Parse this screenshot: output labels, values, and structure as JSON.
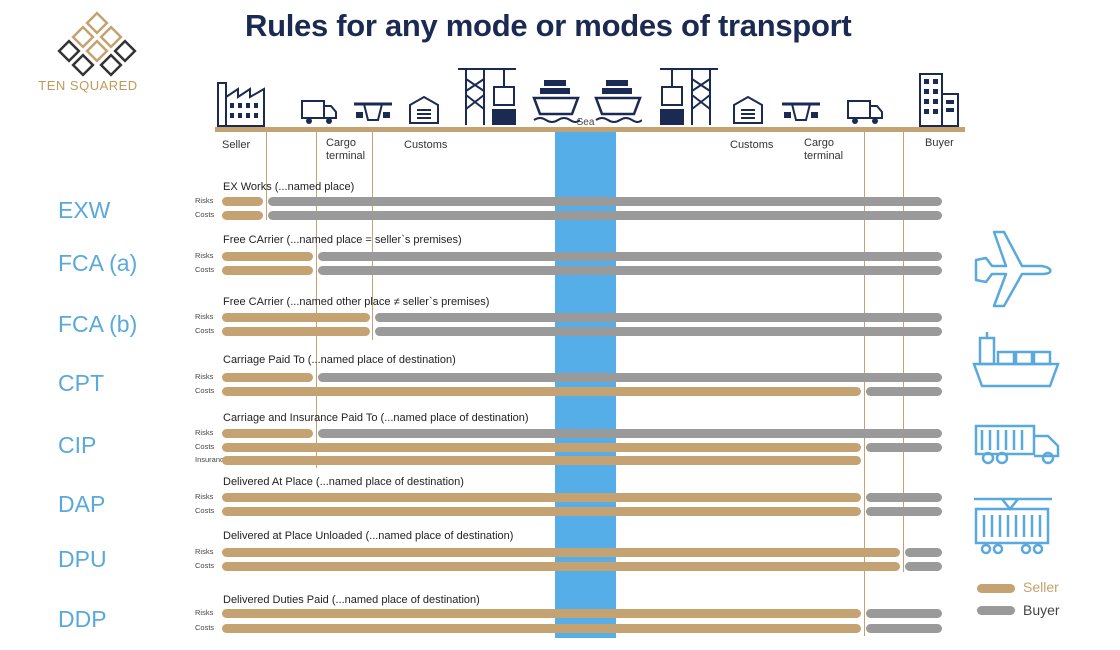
{
  "title": "Rules for any mode or modes of transport",
  "brand": "TEN SQUARED",
  "sea_label": "Sea",
  "locations": {
    "seller": "Seller",
    "cargo_terminal_1": "Cargo terminal",
    "customs_1": "Customs",
    "customs_2": "Customs",
    "cargo_terminal_2": "Cargo terminal",
    "buyer": "Buyer"
  },
  "terms": [
    {
      "code": "EXW",
      "title": "EX Works (...named place)",
      "rows": [
        {
          "label": "Risks",
          "seller_end": 0.4,
          "buyer": true
        },
        {
          "label": "Costs",
          "seller_end": 0.4,
          "buyer": true
        }
      ]
    },
    {
      "code": "FCA (a)",
      "title": "Free CArrier (...named place = seller`s premises)",
      "rows": [
        {
          "label": "Risks",
          "seller_end": 1,
          "buyer": true
        },
        {
          "label": "Costs",
          "seller_end": 1,
          "buyer": true
        }
      ]
    },
    {
      "code": "FCA (b)",
      "title": "Free CArrier (...named other place ≠ seller`s premises)",
      "rows": [
        {
          "label": "Risks",
          "seller_end": 2,
          "buyer": true
        },
        {
          "label": "Costs",
          "seller_end": 2,
          "buyer": true
        }
      ]
    },
    {
      "code": "CPT",
      "title": "Carriage Paid To (...named place of destination)",
      "rows": [
        {
          "label": "Risks",
          "seller_end": 1,
          "buyer": true
        },
        {
          "label": "Costs",
          "seller_end": 9,
          "buyer": true
        }
      ]
    },
    {
      "code": "CIP",
      "title": "Carriage and Insurance Paid To (...named place of destination)",
      "rows": [
        {
          "label": "Risks",
          "seller_end": 1,
          "buyer": true
        },
        {
          "label": "Costs",
          "seller_end": 9,
          "buyer": true
        },
        {
          "label": "Insurance",
          "seller_end": 9,
          "buyer": false
        }
      ]
    },
    {
      "code": "DAP",
      "title": "Delivered At Place (...named place of destination)",
      "rows": [
        {
          "label": "Risks",
          "seller_end": 9,
          "buyer": true
        },
        {
          "label": "Costs",
          "seller_end": 9,
          "buyer": true
        }
      ]
    },
    {
      "code": "DPU",
      "title": "Delivered at Place Unloaded (...named place of destination)",
      "rows": [
        {
          "label": "Risks",
          "seller_end": 10,
          "buyer": true
        },
        {
          "label": "Costs",
          "seller_end": 10,
          "buyer": true
        }
      ]
    },
    {
      "code": "DDP",
      "title": "Delivered Duties Paid (...named place of destination)",
      "rows": [
        {
          "label": "Risks",
          "seller_end": 9,
          "buyer": true
        },
        {
          "label": "Costs",
          "seller_end": 9,
          "buyer": true
        }
      ]
    }
  ],
  "legend": {
    "seller": "Seller",
    "buyer": "Buyer"
  },
  "colors": {
    "seller": "#c5a271",
    "buyer": "#9a9a9a",
    "sea": "#55aee8",
    "term": "#5aa9dd",
    "title": "#1b2a52"
  },
  "transport_modes": [
    "airplane-icon",
    "ship-icon",
    "truck-icon",
    "train-icon"
  ]
}
